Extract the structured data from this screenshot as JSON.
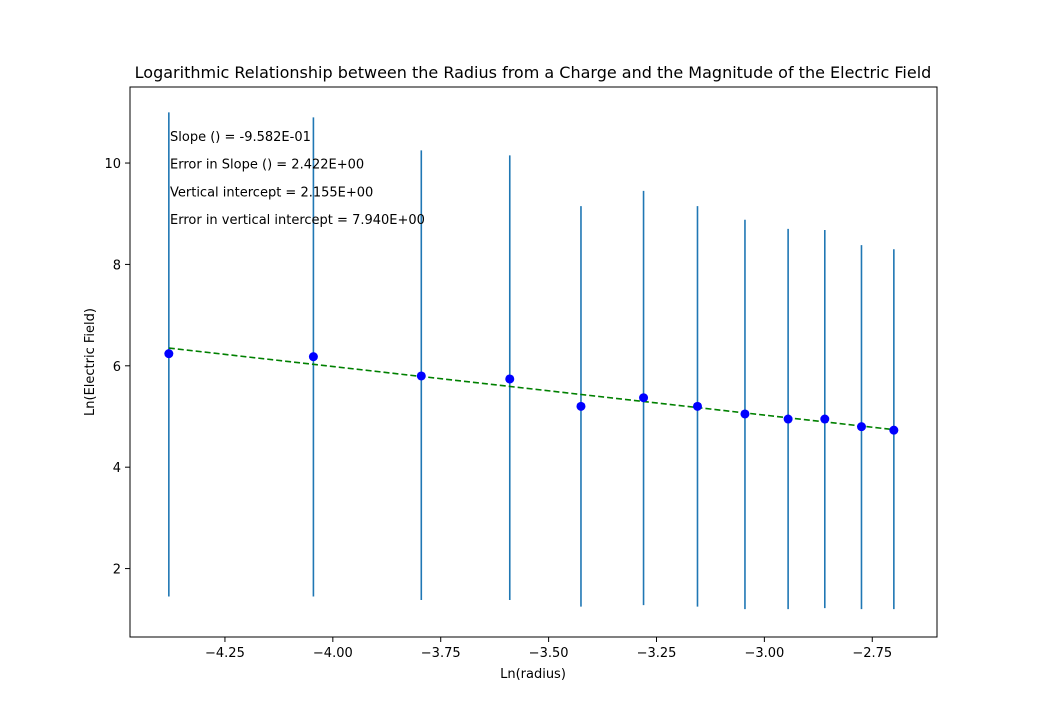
{
  "chart_data": {
    "type": "scatter",
    "title": "Logarithmic Relationship between the Radius from a Charge and the Magnitude of the Electric Field",
    "xlabel": "Ln(radius)",
    "ylabel": "Ln(Electric Field)",
    "xlim": [
      -4.47,
      -2.6
    ],
    "ylim": [
      0.65,
      11.5
    ],
    "xticks": [
      -4.25,
      -4.0,
      -3.75,
      -3.5,
      -3.25,
      -3.0,
      -2.75
    ],
    "xtick_labels": [
      "−4.25",
      "−4.00",
      "−3.75",
      "−3.50",
      "−3.25",
      "−3.00",
      "−2.75"
    ],
    "yticks": [
      2,
      4,
      6,
      8,
      10
    ],
    "ytick_labels": [
      "2",
      "4",
      "6",
      "8",
      "10"
    ],
    "grid": false,
    "annotations": [
      "Slope () = -9.582E-01",
      "Error in Slope () = 2.422E+00",
      "Vertical intercept = 2.155E+00",
      "Error in vertical intercept = 7.940E+00"
    ],
    "series": [
      {
        "x": [
          -4.38,
          -4.045,
          -3.795,
          -3.59,
          -3.425,
          -3.28,
          -3.155,
          -3.045,
          -2.945,
          -2.86,
          -2.775,
          -2.7
        ],
        "y": [
          6.24,
          6.18,
          5.8,
          5.74,
          5.2,
          5.37,
          5.2,
          5.05,
          4.95,
          4.95,
          4.8,
          4.73
        ],
        "yerr_low": [
          1.45,
          1.45,
          1.38,
          1.38,
          1.25,
          1.28,
          1.25,
          1.2,
          1.2,
          1.22,
          1.2,
          1.2
        ],
        "yerr_high": [
          11.0,
          10.9,
          10.25,
          10.15,
          9.15,
          9.45,
          9.15,
          8.88,
          8.7,
          8.68,
          8.38,
          8.3
        ],
        "marker_color": "#0000ff",
        "errorbar_color": "#1f77b4"
      }
    ],
    "fit_line": {
      "x": [
        -4.38,
        -2.7
      ],
      "y": [
        6.35,
        4.74
      ],
      "color": "#008000",
      "style": "dashed"
    }
  }
}
